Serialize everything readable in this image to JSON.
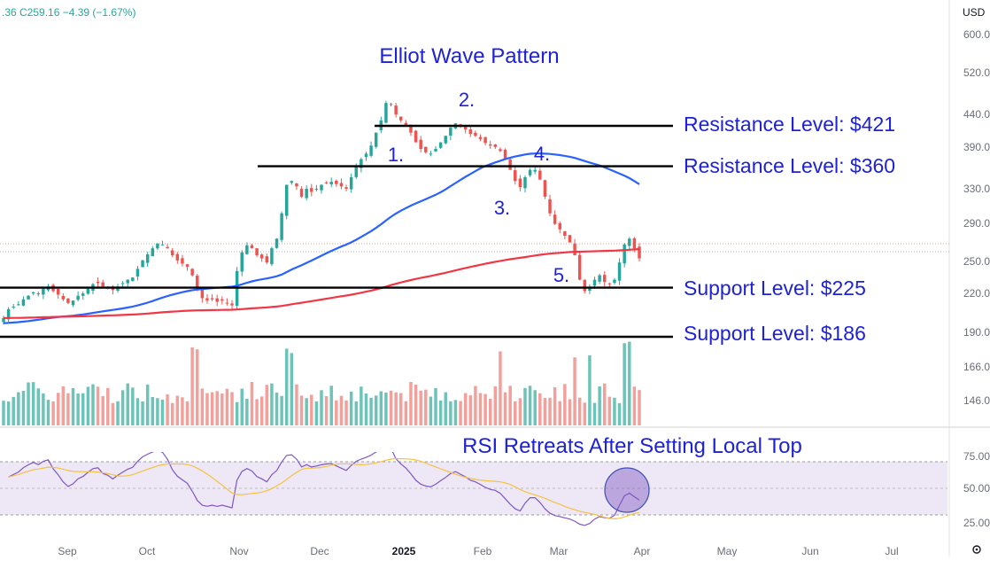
{
  "header": {
    "ohlc_text": ".36  C259.16  −4.39 (−1.67%)",
    "currency": "USD"
  },
  "colors": {
    "up": "#26a69a",
    "down": "#ef5350",
    "vol_up": "#6cc4b9",
    "vol_down": "#f2a09c",
    "ma50": "#2962ff",
    "ma200": "#f23645",
    "annotation": "#1e22d6",
    "rsi_line": "#7e57c2",
    "rsi_signal": "#f5c242"
  },
  "chart_data": [
    {
      "type": "candlestick",
      "title": "Elliot Wave Pattern",
      "x_ticks": [
        "Sep",
        "Oct",
        "Nov",
        "Dec",
        "2025",
        "Feb",
        "Mar",
        "Apr",
        "May",
        "Jun",
        "Jul"
      ],
      "y_ticks": [
        "600.00",
        "520.00",
        "440.00",
        "390.00",
        "330.00",
        "290.00",
        "250.00",
        "220.00",
        "190.00",
        "166.00",
        "146.00"
      ],
      "y_scale": "log",
      "last_close": 259.16,
      "approx_closes": [
        200,
        207,
        209,
        211,
        215,
        218,
        221,
        220,
        224,
        226,
        222,
        219,
        215,
        212,
        214,
        218,
        220,
        224,
        228,
        229,
        226,
        225,
        223,
        226,
        229,
        232,
        234,
        242,
        250,
        256,
        262,
        267,
        266,
        262,
        255,
        250,
        247,
        244,
        236,
        224,
        216,
        214,
        215,
        213,
        214,
        212,
        210,
        240,
        258,
        265,
        262,
        255,
        252,
        248,
        262,
        272,
        300,
        335,
        340,
        333,
        320,
        330,
        326,
        330,
        335,
        338,
        339,
        336,
        333,
        330,
        345,
        360,
        370,
        378,
        390,
        410,
        430,
        460,
        458,
        440,
        430,
        422,
        410,
        395,
        385,
        380,
        378,
        385,
        395,
        405,
        418,
        425,
        420,
        415,
        408,
        405,
        400,
        394,
        390,
        388,
        382,
        370,
        355,
        340,
        332,
        345,
        355,
        355,
        342,
        320,
        300,
        288,
        282,
        275,
        268,
        255,
        232,
        222,
        225,
        232,
        236,
        230,
        228,
        232,
        248,
        266,
        272,
        262,
        252
      ],
      "moving_averages": [
        {
          "name": "50-day MA"
        },
        {
          "name": "200-day MA"
        }
      ],
      "levels": [
        {
          "label": "Resistance Level: $421",
          "value": 421
        },
        {
          "label": "Resistance Level: $360",
          "value": 360
        },
        {
          "label": "Support Level: $225",
          "value": 225
        },
        {
          "label": "Support Level: $186",
          "value": 186
        }
      ],
      "wave_labels": [
        "1.",
        "2.",
        "3.",
        "4.",
        "5."
      ]
    },
    {
      "type": "line",
      "title": "RSI Retreats After Setting Local Top",
      "y_ticks": [
        "75.00",
        "50.00",
        "25.00"
      ],
      "band": [
        30,
        70
      ],
      "ylim": [
        20,
        85
      ]
    }
  ]
}
